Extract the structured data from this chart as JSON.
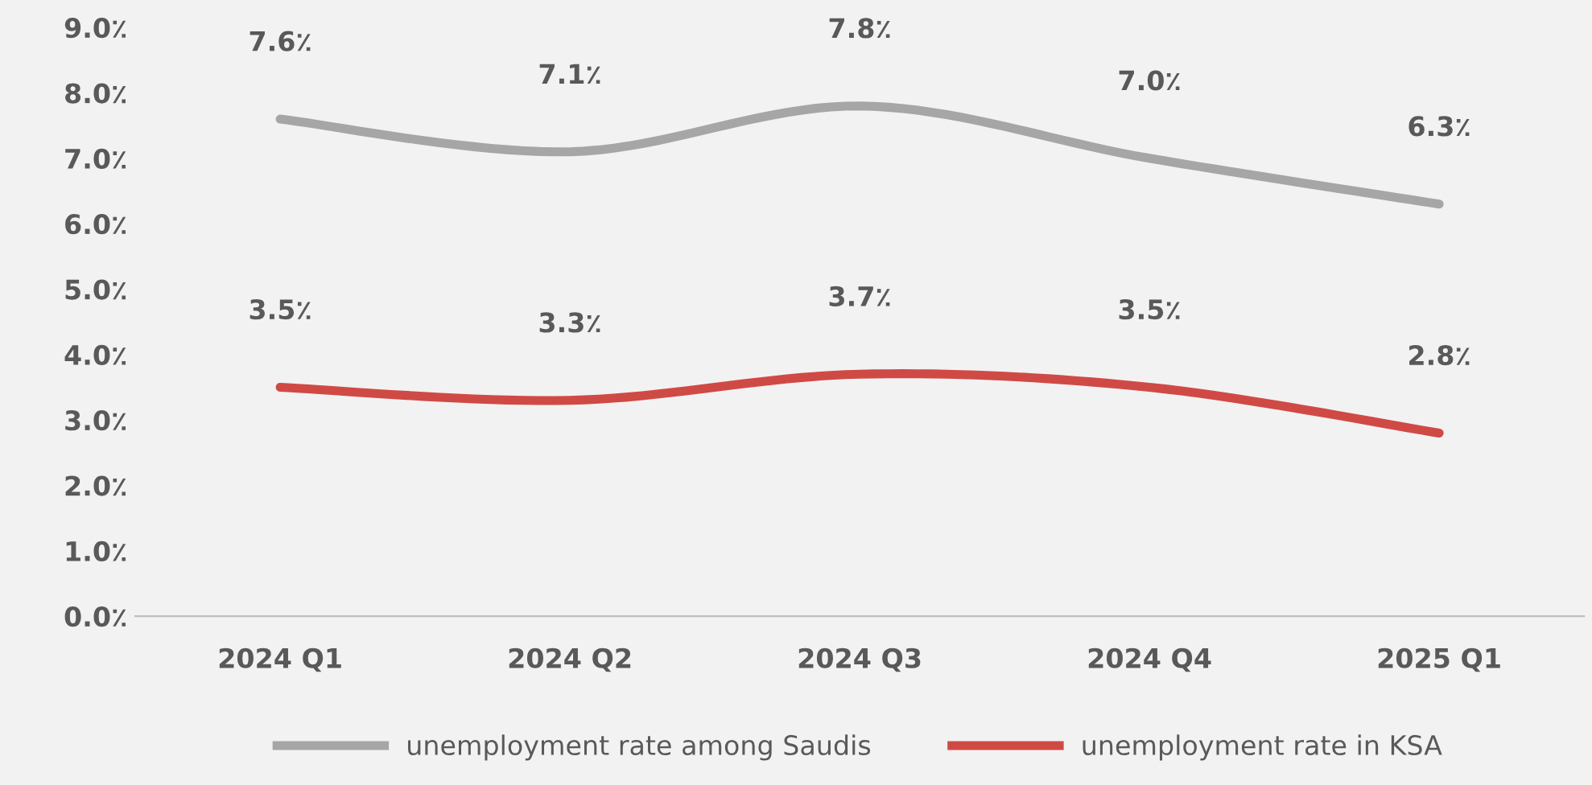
{
  "chart_data": {
    "type": "line",
    "categories": [
      "2024 Q1",
      "2024 Q2",
      "2024 Q3",
      "2024 Q4",
      "2025 Q1"
    ],
    "series": [
      {
        "name": "unemployment rate among Saudis",
        "color": "#a6a6a6",
        "values": [
          7.6,
          7.1,
          7.8,
          7.0,
          6.3
        ],
        "value_labels": [
          "7.6٪",
          "7.1٪",
          "7.8٪",
          "7.0٪",
          "6.3٪"
        ]
      },
      {
        "name": "unemployment rate in KSA",
        "color": "#d04a45",
        "values": [
          3.5,
          3.3,
          3.7,
          3.5,
          2.8
        ],
        "value_labels": [
          "3.5٪",
          "3.3٪",
          "3.7٪",
          "3.5٪",
          "2.8٪"
        ]
      }
    ],
    "ylim": [
      0,
      9
    ],
    "yticks": [
      {
        "value": 0,
        "label": "0.0٪"
      },
      {
        "value": 1,
        "label": "1.0٪"
      },
      {
        "value": 2,
        "label": "2.0٪"
      },
      {
        "value": 3,
        "label": "3.0٪"
      },
      {
        "value": 4,
        "label": "4.0٪"
      },
      {
        "value": 5,
        "label": "5.0٪"
      },
      {
        "value": 6,
        "label": "6.0٪"
      },
      {
        "value": 7,
        "label": "7.0٪"
      },
      {
        "value": 8,
        "label": "8.0٪"
      },
      {
        "value": 9,
        "label": "9.0٪"
      }
    ],
    "grid": false,
    "legend": "bottom",
    "marker": "none",
    "line_style": "solid"
  }
}
